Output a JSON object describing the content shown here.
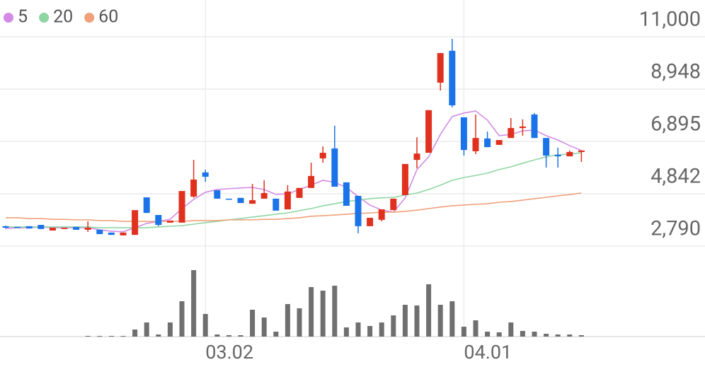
{
  "chart_data": {
    "type": "candlestick",
    "categories": [
      null,
      null,
      null,
      null,
      null,
      null,
      null,
      null,
      null,
      null,
      null,
      null,
      null,
      null,
      null,
      null,
      null,
      "03.02",
      null,
      null,
      null,
      null,
      null,
      null,
      null,
      null,
      null,
      null,
      null,
      null,
      null,
      null,
      null,
      null,
      null,
      null,
      null,
      null,
      null,
      "04.01",
      null,
      null,
      null,
      null,
      null,
      null,
      null,
      null,
      null,
      null
    ],
    "open": [
      3570,
      3540,
      3570,
      3620,
      3400,
      3460,
      3540,
      3430,
      3430,
      3320,
      3210,
      3230,
      4700,
      4010,
      3710,
      3710,
      4730,
      5680,
      4980,
      4650,
      4680,
      4450,
      4650,
      4650,
      4230,
      4680,
      5070,
      6230,
      6620,
      5290,
      4760,
      3570,
      3820,
      4200,
      4790,
      6170,
      6450,
      9200,
      10450,
      7840,
      6510,
      7010,
      6760,
      7030,
      7420,
      7950,
      7030,
      6370,
      6310,
      6480
    ],
    "high": [
      3590,
      3540,
      3570,
      3620,
      3510,
      3510,
      3540,
      3760,
      3430,
      3320,
      3320,
      4200,
      4700,
      4010,
      3790,
      4950,
      6170,
      5790,
      4980,
      4650,
      4680,
      5230,
      5370,
      4650,
      5180,
      5070,
      6060,
      6700,
      7510,
      5290,
      4760,
      3900,
      4230,
      4650,
      6010,
      7060,
      8120,
      10360,
      10920,
      7840,
      7950,
      7280,
      6950,
      7810,
      7760,
      8010,
      7030,
      6650,
      6540,
      6540
    ],
    "low": [
      3480,
      3510,
      3480,
      3460,
      3400,
      3460,
      3430,
      3350,
      3260,
      3230,
      3210,
      3230,
      4090,
      3570,
      3710,
      3710,
      4680,
      5310,
      4650,
      4620,
      4480,
      4450,
      4650,
      4180,
      4230,
      4680,
      5070,
      6060,
      5120,
      4370,
      3290,
      3570,
      3760,
      4200,
      4790,
      5840,
      6450,
      8890,
      8230,
      6340,
      6400,
      6670,
      6760,
      7030,
      7120,
      7030,
      5870,
      5870,
      6310,
      6090
    ],
    "close": [
      3510,
      3510,
      3480,
      3460,
      3510,
      3510,
      3430,
      3510,
      3260,
      3230,
      3320,
      4200,
      4090,
      3620,
      3790,
      4950,
      5400,
      5510,
      4650,
      4620,
      4480,
      4590,
      4870,
      4180,
      4930,
      5070,
      5540,
      6450,
      5120,
      4370,
      3570,
      3900,
      4230,
      4650,
      6010,
      6420,
      8120,
      10360,
      8310,
      6560,
      7030,
      6670,
      6950,
      7420,
      7480,
      7030,
      6340,
      6310,
      6480,
      6540
    ],
    "up_color": "#e0301e",
    "down_color": "#1a73e8",
    "ylim": [
      2790,
      11000
    ],
    "yticks": [
      {
        "value": 11000,
        "label": "11,000"
      },
      {
        "value": 8948,
        "label": "8,948"
      },
      {
        "value": 6895,
        "label": "6,895"
      },
      {
        "value": 4842,
        "label": "4,842"
      },
      {
        "value": 2790,
        "label": "2,790"
      }
    ],
    "grid": true,
    "series": [
      {
        "name": "5",
        "color": "#d48be6",
        "values": [
          3480,
          3510,
          3510,
          3540,
          3510,
          3510,
          3510,
          3510,
          3430,
          3370,
          3350,
          3510,
          3680,
          3760,
          3840,
          4260,
          4620,
          4900,
          5010,
          5040,
          5070,
          5090,
          5010,
          4820,
          4840,
          5010,
          5180,
          5370,
          5290,
          5090,
          4730,
          4400,
          4200,
          4120,
          4680,
          5790,
          6290,
          7170,
          7870,
          8010,
          8090,
          7730,
          7120,
          7170,
          7310,
          7340,
          7120,
          6950,
          6730,
          6540
        ]
      },
      {
        "name": "20",
        "color": "#8fd6a3",
        "values": [
          3540,
          3540,
          3540,
          3540,
          3540,
          3540,
          3540,
          3540,
          3510,
          3510,
          3510,
          3510,
          3510,
          3540,
          3570,
          3590,
          3650,
          3710,
          3760,
          3820,
          3870,
          3930,
          3980,
          4040,
          4090,
          4180,
          4260,
          4370,
          4450,
          4540,
          4590,
          4650,
          4680,
          4700,
          4790,
          4870,
          5010,
          5180,
          5370,
          5480,
          5560,
          5650,
          5790,
          5900,
          6040,
          6170,
          6290,
          6370,
          6400,
          6450
        ]
      },
      {
        "name": "60",
        "color": "#f0a07a",
        "values": [
          3900,
          3900,
          3870,
          3870,
          3840,
          3840,
          3820,
          3820,
          3790,
          3790,
          3760,
          3760,
          3760,
          3760,
          3760,
          3760,
          3790,
          3790,
          3790,
          3820,
          3820,
          3820,
          3840,
          3840,
          3870,
          3900,
          3960,
          3980,
          4010,
          4040,
          4070,
          4090,
          4120,
          4120,
          4150,
          4200,
          4260,
          4320,
          4370,
          4400,
          4430,
          4450,
          4510,
          4540,
          4590,
          4650,
          4700,
          4760,
          4810,
          4870
        ]
      }
    ],
    "volume": {
      "color": "#6f6f6f",
      "ylim": [
        0,
        100
      ],
      "values": [
        0,
        0,
        0,
        0,
        0,
        0,
        0,
        1,
        1,
        1,
        1,
        10,
        20,
        3,
        20,
        50,
        94,
        32,
        3,
        2,
        2,
        38,
        27,
        7,
        46,
        40,
        70,
        65,
        72,
        13,
        20,
        15,
        20,
        30,
        45,
        44,
        74,
        45,
        50,
        14,
        23,
        7,
        6,
        20,
        8,
        7,
        4,
        3,
        3,
        2
      ]
    }
  }
}
